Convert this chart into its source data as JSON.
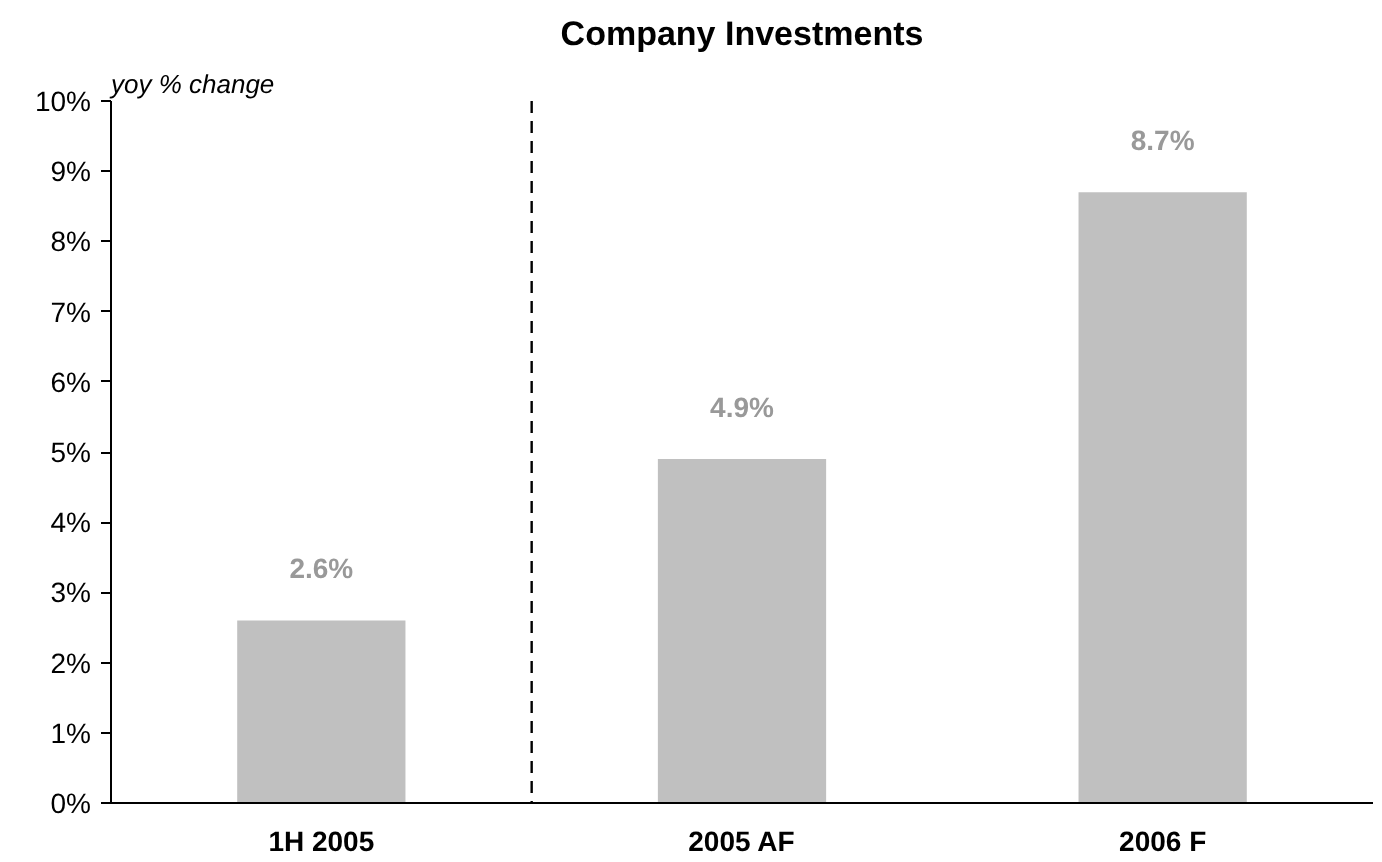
{
  "chart_data": {
    "type": "bar",
    "title": "Company Investments",
    "ylabel": "yoy % change",
    "categories": [
      "1H 2005",
      "2005 AF",
      "2006 F"
    ],
    "values": [
      2.6,
      4.9,
      8.7
    ],
    "color": "#c0c0c0",
    "value_labels": [
      "2.6%",
      "4.9%",
      "8.7%"
    ],
    "ylim": [
      0,
      10
    ],
    "yticks": [
      {
        "value": 0,
        "label": "0%"
      },
      {
        "value": 1,
        "label": "1%"
      },
      {
        "value": 2,
        "label": "2%"
      },
      {
        "value": 3,
        "label": "3%"
      },
      {
        "value": 4,
        "label": "4%"
      },
      {
        "value": 5,
        "label": "5%"
      },
      {
        "value": 6,
        "label": "6%"
      },
      {
        "value": 7,
        "label": "7%"
      },
      {
        "value": 8,
        "label": "8%"
      },
      {
        "value": 9,
        "label": "9%"
      },
      {
        "value": 10,
        "label": "10%"
      }
    ],
    "grid": false
  }
}
